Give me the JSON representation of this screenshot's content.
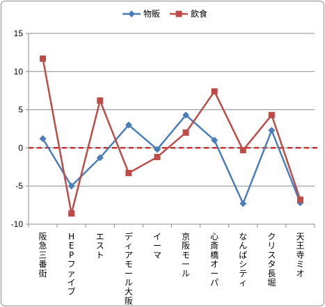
{
  "chart_data": {
    "type": "line",
    "categories": [
      "阪急三番街",
      "HEPファイブ",
      "エスト",
      "ディアモール大阪",
      "イーマ",
      "京阪モール",
      "心斎橋オーパ",
      "なんばシティ",
      "クリスタ長堀",
      "天王寺ミオ"
    ],
    "series": [
      {
        "name": "物販",
        "color": "#4a7ebb",
        "marker": "diamond",
        "values": [
          1.2,
          -5.0,
          -1.3,
          3.0,
          -0.2,
          4.3,
          1.0,
          -7.3,
          2.3,
          -7.2
        ]
      },
      {
        "name": "飲食",
        "color": "#be4b48",
        "marker": "square",
        "values": [
          11.7,
          -8.6,
          6.2,
          -3.3,
          -1.2,
          2.0,
          7.4,
          -0.3,
          4.3,
          -6.8
        ]
      }
    ],
    "ylim": [
      -10,
      15
    ],
    "yticks": [
      -10,
      -5,
      0,
      5,
      10,
      15
    ],
    "grid": true,
    "legend": "top",
    "reference_line": {
      "y": 0,
      "color": "#cc0000",
      "style": "dashed"
    }
  }
}
